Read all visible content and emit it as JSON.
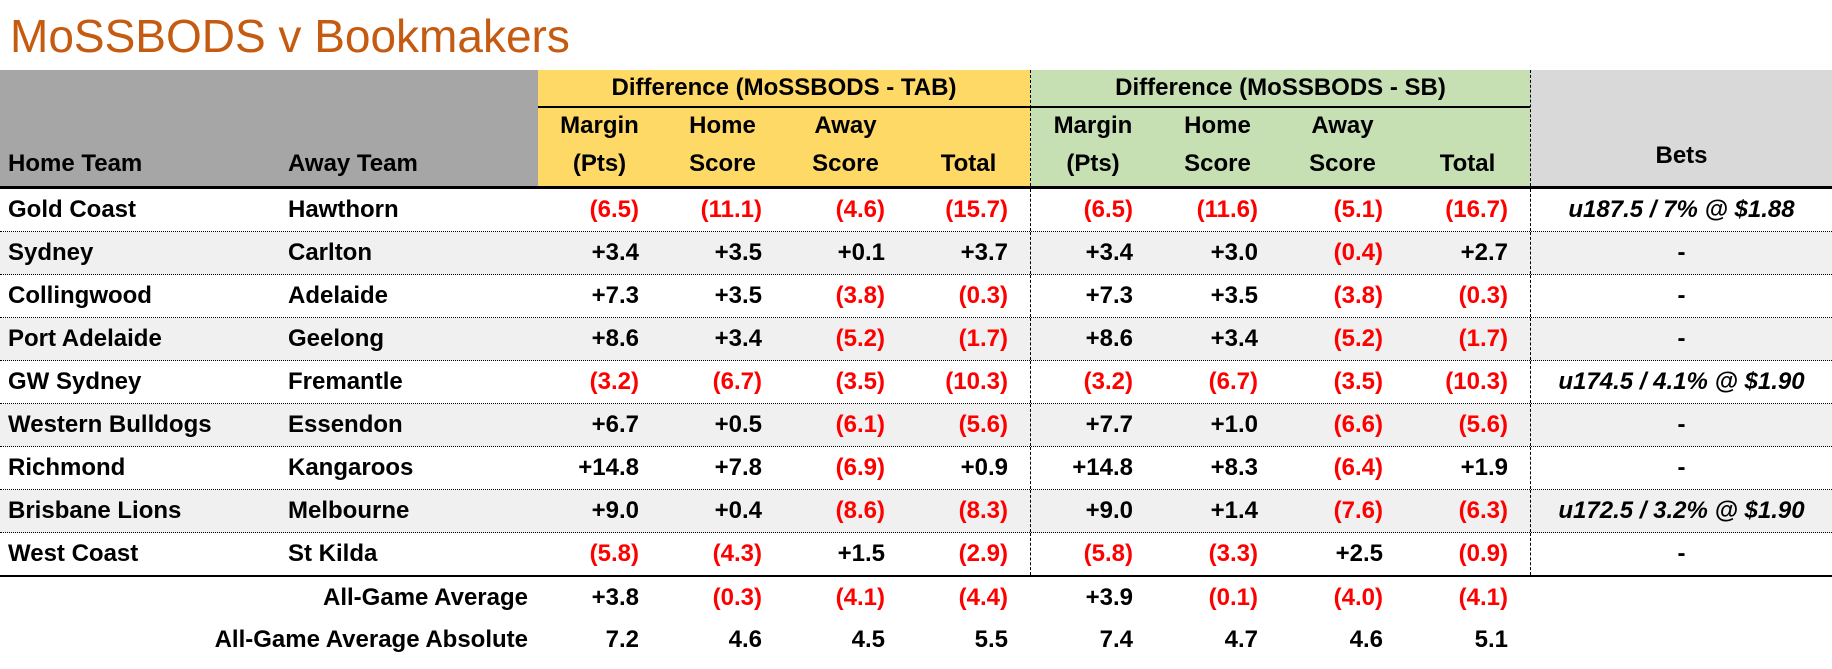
{
  "title": "MoSSBODS v Bookmakers",
  "header": {
    "home_team": "Home Team",
    "away_team": "Away Team",
    "tab_section": "Difference (MoSSBODS - TAB)",
    "sb_section": "Difference (MoSSBODS - SB)",
    "bets": "Bets",
    "sub_columns": {
      "margin_l1": "Margin",
      "margin_l2": "(Pts)",
      "home_l1": "Home",
      "home_l2": "Score",
      "away_l1": "Away",
      "away_l2": "Score",
      "total_l1": "",
      "total_l2": "Total"
    }
  },
  "rows": [
    {
      "home": "Gold Coast",
      "away": "Hawthorn",
      "tab": [
        "(6.5)",
        "(11.1)",
        "(4.6)",
        "(15.7)"
      ],
      "sb": [
        "(6.5)",
        "(11.6)",
        "(5.1)",
        "(16.7)"
      ],
      "bet": "u187.5 / 7% @ $1.88"
    },
    {
      "home": "Sydney",
      "away": "Carlton",
      "tab": [
        "+3.4",
        "+3.5",
        "+0.1",
        "+3.7"
      ],
      "sb": [
        "+3.4",
        "+3.0",
        "(0.4)",
        "+2.7"
      ],
      "bet": "-"
    },
    {
      "home": "Collingwood",
      "away": "Adelaide",
      "tab": [
        "+7.3",
        "+3.5",
        "(3.8)",
        "(0.3)"
      ],
      "sb": [
        "+7.3",
        "+3.5",
        "(3.8)",
        "(0.3)"
      ],
      "bet": "-"
    },
    {
      "home": "Port Adelaide",
      "away": "Geelong",
      "tab": [
        "+8.6",
        "+3.4",
        "(5.2)",
        "(1.7)"
      ],
      "sb": [
        "+8.6",
        "+3.4",
        "(5.2)",
        "(1.7)"
      ],
      "bet": "-"
    },
    {
      "home": "GW Sydney",
      "away": "Fremantle",
      "tab": [
        "(3.2)",
        "(6.7)",
        "(3.5)",
        "(10.3)"
      ],
      "sb": [
        "(3.2)",
        "(6.7)",
        "(3.5)",
        "(10.3)"
      ],
      "bet": "u174.5 / 4.1% @ $1.90"
    },
    {
      "home": "Western Bulldogs",
      "away": "Essendon",
      "tab": [
        "+6.7",
        "+0.5",
        "(6.1)",
        "(5.6)"
      ],
      "sb": [
        "+7.7",
        "+1.0",
        "(6.6)",
        "(5.6)"
      ],
      "bet": "-"
    },
    {
      "home": "Richmond",
      "away": "Kangaroos",
      "tab": [
        "+14.8",
        "+7.8",
        "(6.9)",
        "+0.9"
      ],
      "sb": [
        "+14.8",
        "+8.3",
        "(6.4)",
        "+1.9"
      ],
      "bet": "-"
    },
    {
      "home": "Brisbane Lions",
      "away": "Melbourne",
      "tab": [
        "+9.0",
        "+0.4",
        "(8.6)",
        "(8.3)"
      ],
      "sb": [
        "+9.0",
        "+1.4",
        "(7.6)",
        "(6.3)"
      ],
      "bet": "u172.5 / 3.2% @ $1.90"
    },
    {
      "home": "West Coast",
      "away": "St Kilda",
      "tab": [
        "(5.8)",
        "(4.3)",
        "+1.5",
        "(2.9)"
      ],
      "sb": [
        "(5.8)",
        "(3.3)",
        "+2.5",
        "(0.9)"
      ],
      "bet": "-"
    }
  ],
  "summary": [
    {
      "label": "All-Game Average",
      "tab": [
        "+3.8",
        "(0.3)",
        "(4.1)",
        "(4.4)"
      ],
      "sb": [
        "+3.9",
        "(0.1)",
        "(4.0)",
        "(4.1)"
      ],
      "bet": ""
    },
    {
      "label": "All-Game Average Absolute",
      "tab": [
        "7.2",
        "4.6",
        "4.5",
        "5.5"
      ],
      "sb": [
        "7.4",
        "4.7",
        "4.6",
        "5.1"
      ],
      "bet": ""
    }
  ],
  "colors": {
    "title_orange": "#C55A11",
    "tab_yellow": "#FFD966",
    "sb_green": "#C6E0B4",
    "team_header_gray": "#A6A6A6",
    "bets_header_gray": "#D9D9D9",
    "row_band_gray": "#F0F0F0",
    "negative_red": "#FF0000"
  }
}
